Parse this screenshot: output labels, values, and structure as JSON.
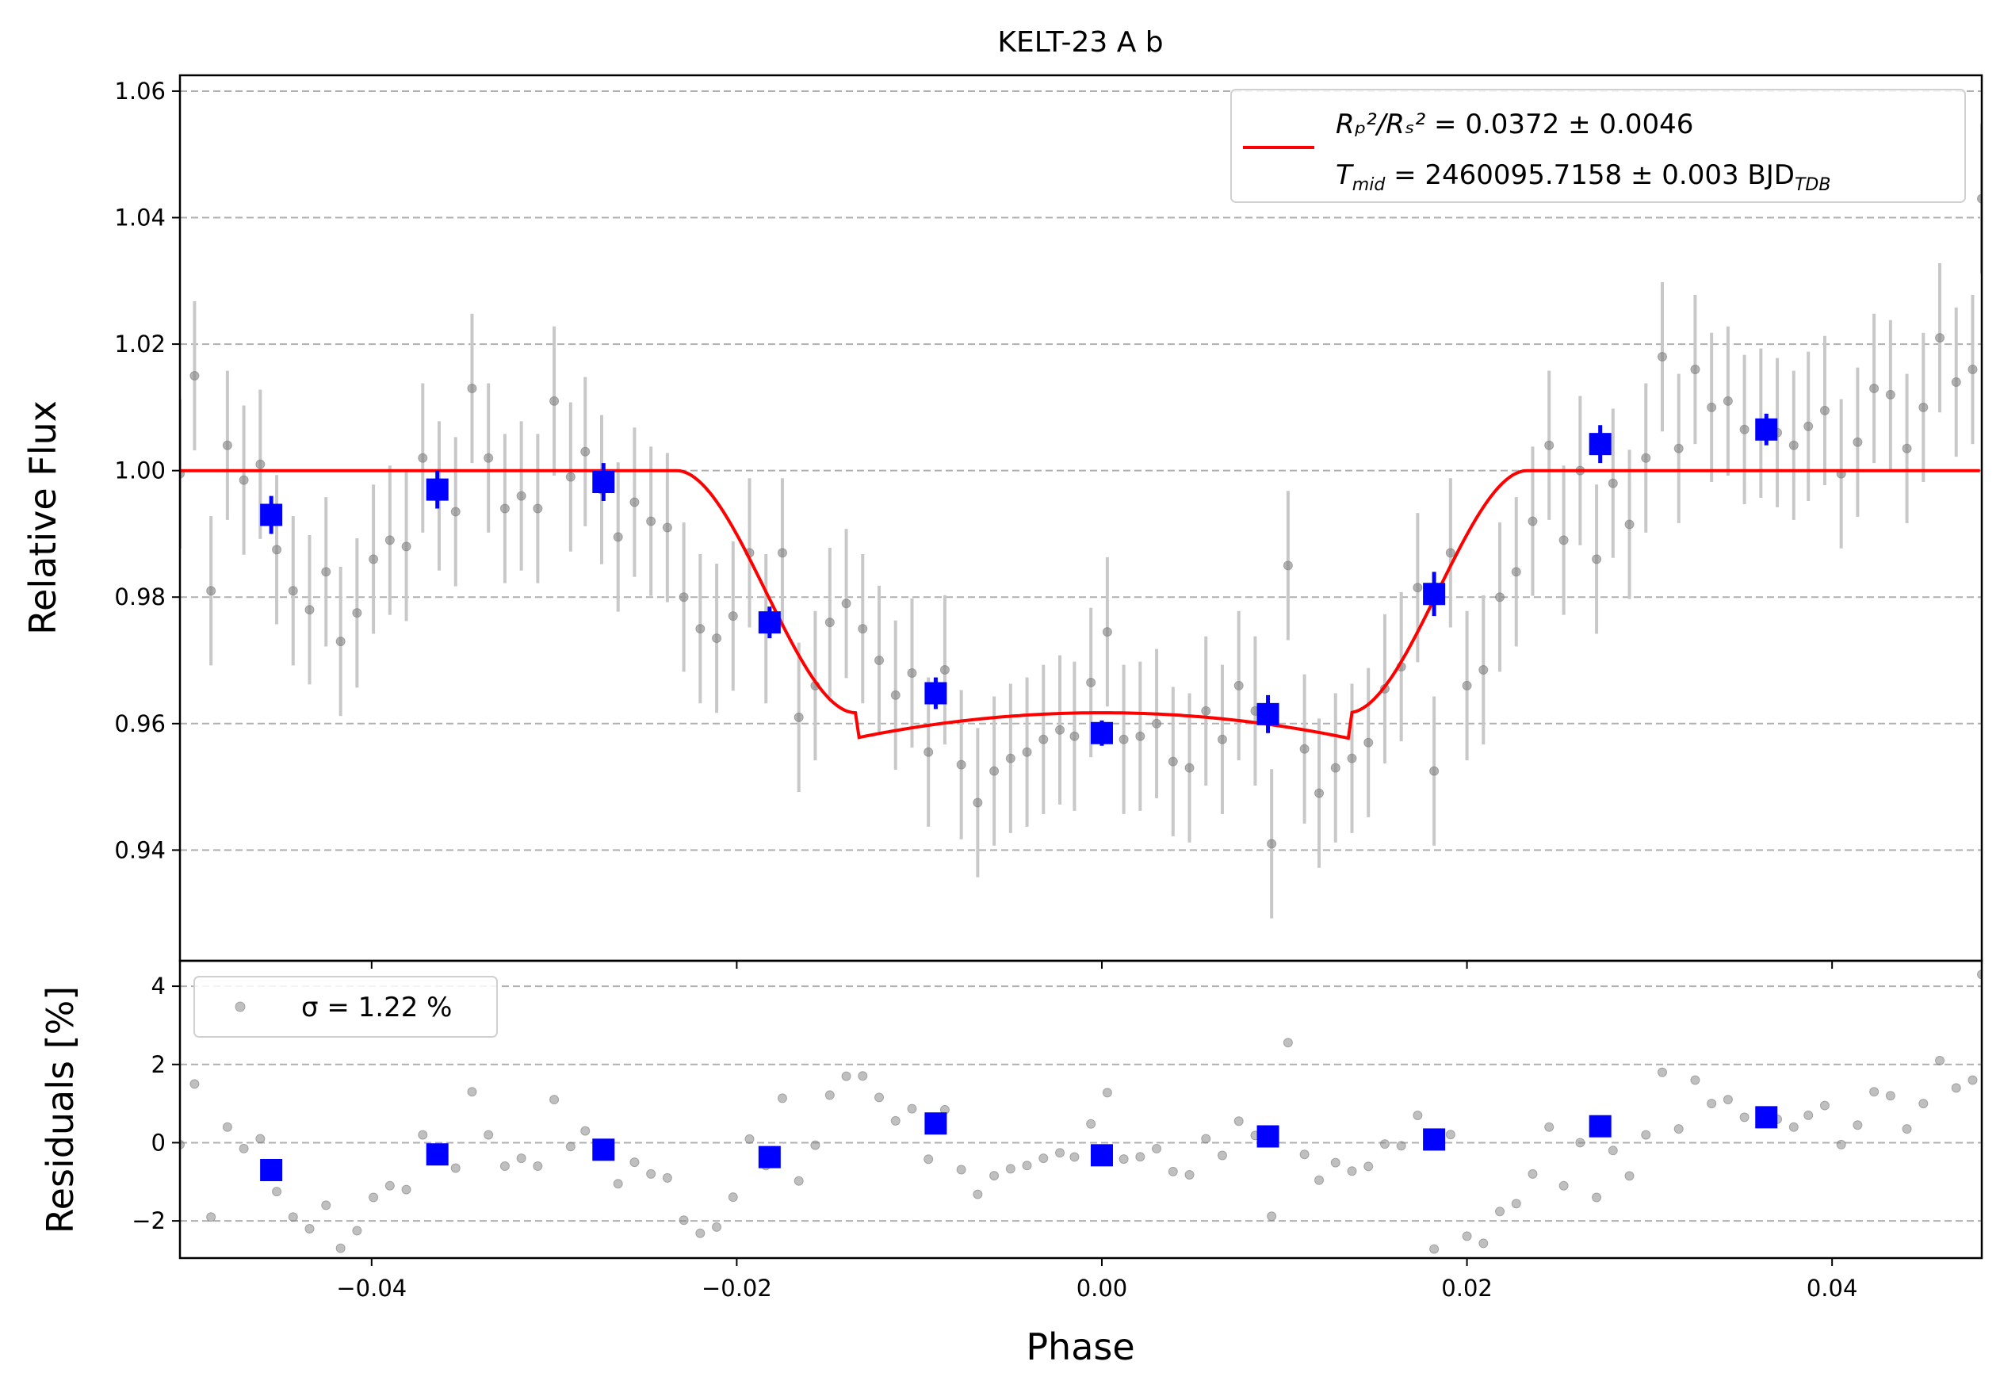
{
  "chart_data": {
    "type": "scatter",
    "title": "KELT-23 A b",
    "xlabel": "Phase",
    "colors": {
      "raw": "#808080",
      "raw_err": "#c8c8c8",
      "binned": "#0000ff",
      "model": "#ff0000"
    },
    "top_panel": {
      "ylabel": "Relative Flux",
      "xlim": [
        -0.0505,
        0.0482
      ],
      "ylim": [
        0.9225,
        1.0625
      ],
      "xticks": [
        -0.04,
        -0.02,
        0.0,
        0.02,
        0.04
      ],
      "xtick_labels": [
        "−0.04",
        "−0.02",
        "0.00",
        "0.02",
        "0.04"
      ],
      "yticks": [
        0.94,
        0.96,
        0.98,
        1.0,
        1.02,
        1.04,
        1.06
      ],
      "ytick_labels": [
        "0.94",
        "0.96",
        "0.98",
        "1.00",
        "1.02",
        "1.04",
        "1.06"
      ],
      "grid": "horizontal dashed",
      "legend": {
        "placement": "top-right",
        "line1": {
          "lhs": "Rₚ²/Rₛ²",
          "rhs": " = 0.0372 ± 0.0046"
        },
        "line2": {
          "lhs": "T",
          "sub": "mid",
          "rhs": " = 2460095.7158 ± 0.003 BJD",
          "unit_sub": "TDB"
        }
      },
      "model": {
        "name": "transit model",
        "depth": 0.0423,
        "t1": -0.0233,
        "t2": -0.0135,
        "t3": 0.0135,
        "t4": 0.0233
      },
      "raw_error": 0.0118,
      "raw_x": [
        -0.0505,
        -0.0497,
        -0.0488,
        -0.0479,
        -0.047,
        -0.0461,
        -0.0452,
        -0.0443,
        -0.0434,
        -0.0425,
        -0.0417,
        -0.0408,
        -0.0399,
        -0.039,
        -0.0381,
        -0.0372,
        -0.0363,
        -0.0354,
        -0.0345,
        -0.0336,
        -0.0327,
        -0.0318,
        -0.0309,
        -0.03,
        -0.0291,
        -0.0283,
        -0.0274,
        -0.0265,
        -0.0256,
        -0.0247,
        -0.0238,
        -0.0229,
        -0.022,
        -0.0211,
        -0.0202,
        -0.0193,
        -0.0184,
        -0.0175,
        -0.0166,
        -0.0157,
        -0.0149,
        -0.014,
        -0.0131,
        -0.0122,
        -0.0113,
        -0.0104,
        -0.0095,
        -0.0086,
        -0.0077,
        -0.0068,
        -0.0059,
        -0.005,
        -0.0041,
        -0.0032,
        -0.0023,
        -0.0015,
        -0.0006,
        0.0003,
        0.0012,
        0.0021,
        0.003,
        0.0039,
        0.0048,
        0.0057,
        0.0066,
        0.0075,
        0.0084,
        0.0093,
        0.0102,
        0.0111,
        0.0119,
        0.0128,
        0.0137,
        0.0146,
        0.0155,
        0.0164,
        0.0173,
        0.0182,
        0.0191,
        0.02,
        0.0209,
        0.0218,
        0.0227,
        0.0236,
        0.0245,
        0.0253,
        0.0262,
        0.0271,
        0.028,
        0.0289,
        0.0298,
        0.0307,
        0.0316,
        0.0325,
        0.0334,
        0.0343,
        0.0352,
        0.0361,
        0.037,
        0.0379,
        0.0387,
        0.0396,
        0.0405,
        0.0414,
        0.0423,
        0.0432,
        0.0441,
        0.045,
        0.0459,
        0.0468,
        0.0477,
        0.0482
      ],
      "raw_y": [
        0.9995,
        1.015,
        0.981,
        1.004,
        0.9985,
        1.001,
        0.9875,
        0.981,
        0.978,
        0.984,
        0.973,
        0.9775,
        0.986,
        0.989,
        0.988,
        1.002,
        0.996,
        0.9935,
        1.013,
        1.002,
        0.994,
        0.996,
        0.994,
        1.011,
        0.999,
        1.003,
        0.997,
        0.9895,
        0.995,
        0.992,
        0.991,
        0.98,
        0.975,
        0.9735,
        0.977,
        0.987,
        0.975,
        0.987,
        0.961,
        0.966,
        0.976,
        0.979,
        0.975,
        0.97,
        0.9645,
        0.968,
        0.9555,
        0.9685,
        0.9535,
        0.9475,
        0.9525,
        0.9545,
        0.9555,
        0.9575,
        0.959,
        0.958,
        0.9665,
        0.9745,
        0.9575,
        0.958,
        0.96,
        0.954,
        0.953,
        0.962,
        0.9575,
        0.966,
        0.962,
        0.941,
        0.985,
        0.956,
        0.949,
        0.953,
        0.9545,
        0.957,
        0.9655,
        0.969,
        0.9815,
        0.9525,
        0.987,
        0.966,
        0.9685,
        0.98,
        0.984,
        0.992,
        1.004,
        0.989,
        1.0,
        0.986,
        0.998,
        0.9915,
        1.002,
        1.018,
        1.0035,
        1.016,
        1.01,
        1.011,
        1.0065,
        1.0075,
        1.006,
        1.004,
        1.007,
        1.0095,
        0.9995,
        1.0045,
        1.013,
        1.012,
        1.0035,
        1.01,
        1.021,
        1.014,
        1.016,
        1.043
      ],
      "binned_x": [
        -0.0455,
        -0.0364,
        -0.0273,
        -0.0182,
        -0.0091,
        0.0,
        0.0091,
        0.0182,
        0.0273,
        0.0364
      ],
      "binned_y": [
        0.993,
        0.997,
        0.9982,
        0.976,
        0.9648,
        0.9585,
        0.9615,
        0.9805,
        1.0042,
        1.0065
      ],
      "binned_err": [
        0.003,
        0.003,
        0.003,
        0.0025,
        0.0025,
        0.002,
        0.003,
        0.0035,
        0.003,
        0.0025
      ]
    },
    "bottom_panel": {
      "ylabel": "Residuals [%]",
      "ylim": [
        -2.95,
        4.65
      ],
      "yticks": [
        -2,
        0,
        2,
        4
      ],
      "ytick_labels": [
        "−2",
        "0",
        "2",
        "4"
      ],
      "legend": {
        "placement": "top-left",
        "label": "σ = 1.22 %"
      }
    }
  }
}
